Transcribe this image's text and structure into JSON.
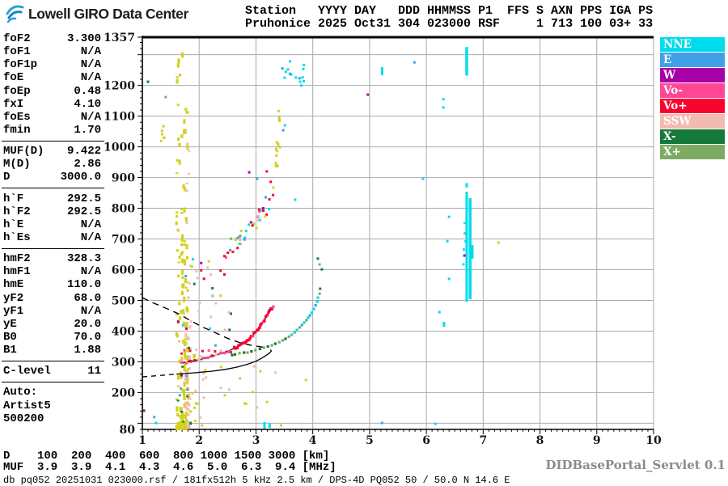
{
  "header": {
    "logo_text": "Lowell GIRO Data Center",
    "station_line1": "Station   YYYY DAY   DDD HHMMSS P1  FFS S AXN PPS IGA PS",
    "station_line2": "Pruhonice 2025 Oct31 304 023000 RSF     1 713 100 03+ 33"
  },
  "parameters": {
    "groups": [
      {
        "rows": [
          [
            "foF2",
            "3.300"
          ],
          [
            "foF1",
            "N/A"
          ],
          [
            "foF1p",
            "N/A"
          ],
          [
            "foE",
            "N/A"
          ],
          [
            "foEp",
            "0.48"
          ],
          [
            "fxI",
            "4.10"
          ],
          [
            "foEs",
            "N/A"
          ],
          [
            "fmin",
            "1.70"
          ]
        ]
      },
      {
        "rows": [
          [
            "MUF(D)",
            "9.422"
          ],
          [
            "M(D)",
            "2.86"
          ],
          [
            "D",
            "3000.0"
          ]
        ]
      },
      {
        "rows": [
          [
            "h`F",
            "292.5"
          ],
          [
            "h`F2",
            "292.5"
          ],
          [
            "h`E",
            "N/A"
          ],
          [
            "h`Es",
            "N/A"
          ]
        ]
      },
      {
        "rows": [
          [
            "hmF2",
            "328.3"
          ],
          [
            "hmF1",
            "N/A"
          ],
          [
            "hmE",
            "110.0"
          ],
          [
            "yF2",
            "68.0"
          ],
          [
            "yF1",
            "N/A"
          ],
          [
            "yE",
            "20.0"
          ],
          [
            "B0",
            "70.0"
          ],
          [
            "B1",
            "1.88"
          ]
        ]
      },
      {
        "rows": [
          [
            "C-level",
            "11"
          ]
        ]
      }
    ],
    "auto_label": "Auto:",
    "auto_lines": [
      "Artist5",
      "500200"
    ]
  },
  "legend": {
    "items": [
      {
        "label": "NNE",
        "color": "#00dcee"
      },
      {
        "label": "E",
        "color": "#41a0e8"
      },
      {
        "label": "W",
        "color": "#a800a8"
      },
      {
        "label": "Vo-",
        "color": "#ff4796"
      },
      {
        "label": "Vo+",
        "color": "#f90330"
      },
      {
        "label": "SSW",
        "color": "#f2bbb1"
      },
      {
        "label": "X-",
        "color": "#15793c"
      },
      {
        "label": "X+",
        "color": "#7cac64"
      }
    ]
  },
  "footer": {
    "d_line": "D    100  200  400  600  800 1000 1500 3000 [km]",
    "muf_line": "MUF  3.9  3.9  4.1  4.3  4.6  5.0  6.3  9.4 [MHz]",
    "status": "db pq052 20251031 023000.rsf / 181fx512h 5 kHz 2.5 km / DPS-4D PQ052 50 / 50.0 N 14.6 E",
    "servlet": "DIDBasePortal_Servlet 0.1"
  },
  "chart_data": {
    "type": "scatter",
    "title": "Pruhonice ionogram 2025 Oct31 023000 UT",
    "xlabel": "[MHz]",
    "ylabel": "[km]",
    "x_range": [
      1,
      10
    ],
    "y_range": [
      80,
      1357
    ],
    "x_axis_labels": [
      1,
      2,
      3,
      4,
      5,
      6,
      7,
      8,
      9,
      10
    ],
    "y_axis_labels": [
      1357,
      1200,
      1100,
      1000,
      900,
      800,
      700,
      600,
      500,
      400,
      300,
      200,
      80
    ],
    "grid": true,
    "legend_position": "right",
    "scaled_parameters": {
      "foF2": 3.3,
      "fxI": 4.1,
      "fmin": 1.7,
      "h_F": 292.5,
      "hmF2": 328.3,
      "MUF_3000": 9.422
    },
    "colors": {
      "NNE": "#00dcee",
      "E": "#41a0e8",
      "W": "#a800a8",
      "Vo-": "#ff4796",
      "Vo+": "#f90330",
      "SSW": "#f2bbb1",
      "X-": "#15793c",
      "X+": "#7cac64",
      "noise": "#d2d21e",
      "trace": "#1a1a1a",
      "grid": "#a9a9b2",
      "axis": "#000000"
    },
    "o_trace_line": [
      [
        1.68,
        296
      ],
      [
        1.98,
        306
      ],
      [
        2.27,
        320
      ],
      [
        2.52,
        335
      ],
      [
        2.72,
        354
      ],
      [
        2.85,
        370
      ],
      [
        2.95,
        388
      ],
      [
        3.04,
        406
      ],
      [
        3.12,
        428
      ],
      [
        3.19,
        449
      ],
      [
        3.25,
        467
      ],
      [
        3.3,
        478
      ]
    ],
    "o_trace_dot_specs": [
      {
        "f0": 1.7,
        "f1": 2.6,
        "step": 0.075,
        "hJit": 5,
        "seed": 3,
        "colors": [
          [
            "Vo+",
            0.45
          ],
          [
            "Vo-",
            0.3
          ],
          [
            "SSW",
            0.25
          ]
        ]
      },
      {
        "f0": 2.62,
        "f1": 3.33,
        "step": 0.023,
        "hJit": 7,
        "seed": 4,
        "colors": [
          [
            "Vo+",
            0.8
          ],
          [
            "Vo-",
            0.15
          ],
          [
            "W",
            0.05
          ]
        ]
      }
    ],
    "flat_row_dots": [
      [
        1.74,
        338,
        "Vo-"
      ],
      [
        1.84,
        336,
        "Vo+"
      ],
      [
        1.95,
        339,
        "SSW"
      ],
      [
        2.06,
        335,
        "Vo+"
      ],
      [
        2.17,
        337,
        "Vo-"
      ],
      [
        2.28,
        334,
        "Vo+"
      ],
      [
        2.38,
        336,
        "SSW"
      ],
      [
        2.48,
        333,
        "Vo-"
      ],
      [
        2.56,
        331,
        "Vo+"
      ]
    ],
    "x_trace_dots": [
      [
        2.58,
        322,
        "X-"
      ],
      [
        2.63,
        324,
        "X-"
      ],
      [
        2.71,
        328,
        "X+"
      ],
      [
        2.79,
        330,
        "X-"
      ],
      [
        2.85,
        330,
        "X+"
      ],
      [
        2.92,
        334,
        "X-"
      ],
      [
        2.99,
        338,
        "X+"
      ],
      [
        3.07,
        342,
        "X-"
      ],
      [
        3.14,
        346,
        "X+"
      ],
      [
        3.21,
        350,
        "X-"
      ],
      [
        3.28,
        354,
        "X+"
      ],
      [
        3.34,
        359,
        "X-"
      ],
      [
        3.41,
        364,
        "X+"
      ],
      [
        3.47,
        370,
        "X+"
      ],
      [
        3.52,
        375,
        "X-"
      ],
      [
        3.58,
        382,
        "X+"
      ],
      [
        3.63,
        388,
        "NNE"
      ],
      [
        3.68,
        396,
        "X+"
      ],
      [
        3.72,
        404,
        "NNE"
      ],
      [
        3.77,
        412,
        "X+"
      ],
      [
        3.81,
        420,
        "E"
      ],
      [
        3.85,
        428,
        "NNE"
      ],
      [
        3.89,
        436,
        "X+"
      ],
      [
        3.92,
        444,
        "NNE"
      ],
      [
        3.95,
        451,
        "E"
      ],
      [
        3.98,
        460,
        "NNE"
      ],
      [
        4.02,
        472,
        "NNE"
      ],
      [
        4.05,
        484,
        "E"
      ],
      [
        4.08,
        496,
        "NNE"
      ],
      [
        4.09,
        509,
        "NNE"
      ]
    ],
    "profile_dashed": [
      [
        1.0,
        251
      ],
      [
        1.2,
        254
      ],
      [
        1.4,
        257
      ],
      [
        1.6,
        260
      ]
    ],
    "profile_solid": [
      [
        1.6,
        260
      ],
      [
        1.9,
        264
      ],
      [
        2.2,
        269
      ],
      [
        2.45,
        275
      ],
      [
        2.65,
        282
      ],
      [
        2.85,
        292
      ],
      [
        3.0,
        302
      ],
      [
        3.1,
        312
      ],
      [
        3.18,
        321
      ],
      [
        3.24,
        329
      ],
      [
        3.27,
        335
      ],
      [
        3.255,
        340
      ]
    ],
    "transmission_dashed": [
      [
        1.0,
        509
      ],
      [
        1.2,
        491
      ],
      [
        1.41,
        475
      ],
      [
        1.63,
        457
      ],
      [
        1.84,
        435
      ],
      [
        2.05,
        414
      ],
      [
        2.27,
        396
      ],
      [
        2.48,
        378
      ],
      [
        2.69,
        364
      ],
      [
        2.91,
        354
      ],
      [
        3.08,
        349
      ],
      [
        3.19,
        346
      ]
    ],
    "second_hop_band": {
      "pts": [
        [
          1.81,
          596
        ],
        [
          2.05,
          617
        ],
        [
          2.3,
          643
        ],
        [
          2.52,
          672
        ],
        [
          2.72,
          701
        ],
        [
          2.89,
          733
        ],
        [
          3.04,
          767
        ],
        [
          3.16,
          801
        ],
        [
          3.26,
          828
        ],
        [
          3.35,
          851
        ]
      ],
      "count": 48,
      "fJit": 0.07,
      "hJit": 26,
      "seed": 11,
      "colors": [
        [
          "Vo+",
          0.28
        ],
        [
          "noise",
          0.22
        ],
        [
          "NNE",
          0.13
        ],
        [
          "SSW",
          0.12
        ],
        [
          "E",
          0.1
        ],
        [
          "Vo-",
          0.06
        ],
        [
          "X+",
          0.05
        ],
        [
          "W",
          0.04
        ]
      ]
    },
    "noise_columns": [
      {
        "f": 1.7,
        "fw": 0.1,
        "h0": 85,
        "h1": 1300,
        "count": 170,
        "colors": [
          [
            "noise",
            1
          ]
        ],
        "w": 3.2,
        "dash": [
          2,
          7
        ],
        "pow": 3,
        "seed": 7
      },
      {
        "f": 1.8,
        "fw": 0.05,
        "h0": 85,
        "h1": 420,
        "count": 40,
        "colors": [
          [
            "SSW",
            1
          ]
        ],
        "w": 3,
        "dash": [
          2,
          5
        ],
        "pow": 1.1,
        "seed": 8
      },
      {
        "f": 1.8,
        "fw": 0.05,
        "h0": 420,
        "h1": 1100,
        "count": 10,
        "colors": [
          [
            "SSW",
            1
          ]
        ],
        "w": 3,
        "dash": [
          2,
          4
        ],
        "pow": 1,
        "seed": 9
      },
      {
        "f": 1.72,
        "fw": 0.13,
        "h0": 85,
        "h1": 520,
        "count": 16,
        "colors": [
          [
            "X-",
            0.3
          ],
          [
            "E",
            0.25
          ],
          [
            "NNE",
            0.2
          ],
          [
            "Vo+",
            0.15
          ],
          [
            "W",
            0.1
          ]
        ],
        "w": 3,
        "dash": [
          2,
          4
        ],
        "pow": 1,
        "seed": 10
      },
      {
        "f": 3.39,
        "fw": 0.04,
        "h0": 880,
        "h1": 1270,
        "count": 13,
        "colors": [
          [
            "noise",
            1
          ]
        ],
        "w": 3,
        "dash": [
          2,
          5
        ],
        "pow": 1,
        "seed": 12
      },
      {
        "f": 6.68,
        "fw": 0.03,
        "h0": 610,
        "h1": 800,
        "count": 8,
        "colors": [
          [
            "NNE",
            1
          ]
        ],
        "w": 2.8,
        "dash": [
          2,
          4
        ],
        "pow": 1,
        "seed": 13
      }
    ],
    "speck_clusters": [
      {
        "f0": 3.42,
        "f1": 3.88,
        "h0": 1195,
        "h1": 1285,
        "count": 15,
        "colors": [
          [
            "NNE",
            0.7
          ],
          [
            "E",
            0.3
          ]
        ],
        "seed": 21
      },
      {
        "f0": 1.33,
        "f1": 1.42,
        "h0": 1010,
        "h1": 1095,
        "count": 6,
        "colors": [
          [
            "noise",
            1
          ]
        ],
        "seed": 22
      },
      {
        "f0": 1.85,
        "f1": 2.6,
        "h0": 120,
        "h1": 560,
        "count": 20,
        "colors": [
          [
            "SSW",
            0.4
          ],
          [
            "noise",
            0.3
          ],
          [
            "E",
            0.1
          ],
          [
            "X-",
            0.1
          ],
          [
            "NNE",
            0.1
          ]
        ],
        "seed": 23
      },
      {
        "f0": 1.78,
        "f1": 2.15,
        "h0": 85,
        "h1": 330,
        "count": 22,
        "colors": [
          [
            "SSW",
            0.55
          ],
          [
            "noise",
            0.45
          ]
        ],
        "seed": 24
      },
      {
        "f0": 2.6,
        "f1": 3.4,
        "h0": 120,
        "h1": 300,
        "count": 8,
        "colors": [
          [
            "noise",
            0.6
          ],
          [
            "SSW",
            0.4
          ]
        ],
        "seed": 25
      },
      {
        "f0": 1.95,
        "f1": 2.45,
        "h0": 480,
        "h1": 620,
        "count": 9,
        "colors": [
          [
            "noise",
            0.5
          ],
          [
            "SSW",
            0.3
          ],
          [
            "Vo+",
            0.2
          ]
        ],
        "seed": 26
      }
    ],
    "streaks": [
      [
        6.71,
        496,
        854,
        3
      ],
      [
        6.77,
        504,
        833,
        3.5
      ],
      [
        6.81,
        636,
        680,
        3
      ],
      [
        6.71,
        1232,
        1325,
        3.5
      ],
      [
        5.22,
        1233,
        1260,
        3
      ],
      [
        3.15,
        83,
        104,
        3
      ],
      [
        3.24,
        85,
        100,
        3
      ],
      [
        6.31,
        414,
        430,
        3
      ],
      [
        6.71,
        868,
        882,
        3
      ]
    ],
    "singles": [
      [
        4.97,
        1170,
        "W"
      ],
      [
        6.67,
        646,
        "W"
      ],
      [
        1.03,
        141,
        "W"
      ],
      [
        2.88,
        917,
        "W"
      ],
      [
        5.79,
        1275,
        "E"
      ],
      [
        1.21,
        120,
        "E"
      ],
      [
        3.02,
        896,
        "E"
      ],
      [
        5.22,
        101,
        "E"
      ],
      [
        3.48,
        1054,
        "E"
      ],
      [
        1.66,
        191,
        "E"
      ],
      [
        6.3,
        1128,
        "NNE"
      ],
      [
        6.3,
        1155,
        "NNE"
      ],
      [
        3.51,
        1070,
        "NNE"
      ],
      [
        5.94,
        896,
        "NNE"
      ],
      [
        6.4,
        772,
        "NNE"
      ],
      [
        6.37,
        693,
        "NNE"
      ],
      [
        6.4,
        570,
        "NNE"
      ],
      [
        1.24,
        101,
        "NNE"
      ],
      [
        6.16,
        98,
        "NNE"
      ],
      [
        6.23,
        462,
        "NNE"
      ],
      [
        3.69,
        828,
        "NNE"
      ],
      [
        3.44,
        93,
        "noise"
      ],
      [
        7.27,
        688,
        "noise"
      ],
      [
        2.72,
        246,
        "noise"
      ],
      [
        3.88,
        241,
        "noise"
      ],
      [
        1.1,
        1212,
        "X-"
      ],
      [
        4.16,
        601,
        "X-"
      ],
      [
        4.13,
        538,
        "X-"
      ],
      [
        4.09,
        636,
        "X-"
      ],
      [
        1.41,
        1162,
        "X+"
      ],
      [
        4.12,
        617,
        "X+"
      ],
      [
        4.12,
        522,
        "X+"
      ],
      [
        3.19,
        920,
        "Vo+"
      ],
      [
        3.26,
        886,
        "Vo+"
      ]
    ]
  }
}
